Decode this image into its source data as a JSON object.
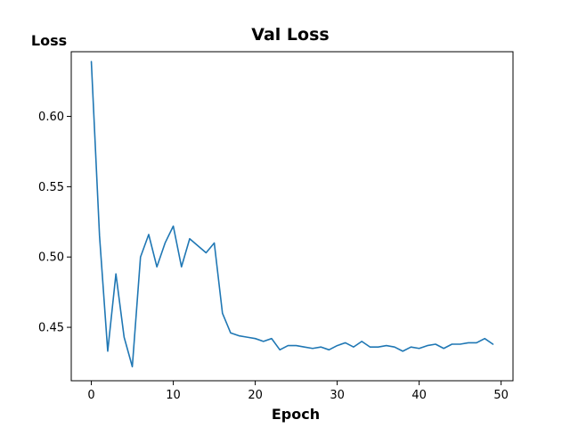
{
  "chart_data": {
    "type": "line",
    "title": "Val Loss",
    "xlabel": "Epoch",
    "ylabel": "Loss",
    "xlim": [
      -2.45,
      51.45
    ],
    "ylim": [
      0.412,
      0.646
    ],
    "xticks": [
      0,
      10,
      20,
      30,
      40,
      50
    ],
    "yticks": [
      0.45,
      0.5,
      0.55,
      0.6
    ],
    "ytick_labels": [
      "0.45",
      "0.50",
      "0.55",
      "0.60"
    ],
    "grid": false,
    "colors": {
      "line": "#1f77b4"
    },
    "series": [
      {
        "x": [
          0,
          1,
          2,
          3,
          4,
          5,
          6,
          7,
          8,
          9,
          10,
          11,
          12,
          13,
          14,
          15,
          16,
          17,
          18,
          19,
          20,
          21,
          22,
          23,
          24,
          25,
          26,
          27,
          28,
          29,
          30,
          31,
          32,
          33,
          34,
          35,
          36,
          37,
          38,
          39,
          40,
          41,
          42,
          43,
          44,
          45,
          46,
          47,
          48,
          49
        ],
        "values": [
          0.639,
          0.515,
          0.433,
          0.488,
          0.443,
          0.422,
          0.5,
          0.516,
          0.493,
          0.51,
          0.522,
          0.493,
          0.513,
          0.508,
          0.503,
          0.51,
          0.46,
          0.446,
          0.444,
          0.443,
          0.442,
          0.44,
          0.442,
          0.434,
          0.437,
          0.437,
          0.436,
          0.435,
          0.436,
          0.434,
          0.437,
          0.439,
          0.436,
          0.44,
          0.436,
          0.436,
          0.437,
          0.436,
          0.433,
          0.436,
          0.435,
          0.437,
          0.438,
          0.435,
          0.438,
          0.438,
          0.439,
          0.439,
          0.442,
          0.438
        ]
      }
    ]
  }
}
